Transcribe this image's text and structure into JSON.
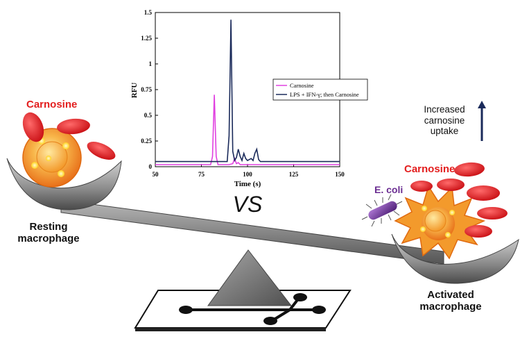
{
  "labels": {
    "left_cargo": "Carnosine",
    "right_cargo": "Carnosine",
    "resting": "Resting\nmacrophage",
    "activated": "Activated\nmacrophage",
    "ecoli": "E. coli",
    "uptake": "Increased\ncarnosine\nuptake",
    "vs": "VS"
  },
  "colors": {
    "carnosine": "#e3161c",
    "series_carnosine": "#e040e0",
    "series_lps": "#1a2a5a",
    "arrow": "#1a2a5a",
    "ecoli": "#6a2c91"
  },
  "icons": [
    "scale-icon",
    "microfluidic-chip-icon",
    "ecoli-icon",
    "up-arrow-icon"
  ],
  "chart_data": {
    "type": "line",
    "xlabel": "Time (s)",
    "ylabel": "RFU",
    "xlim": [
      50,
      150
    ],
    "ylim": [
      0,
      1.5
    ],
    "xticks": [
      50,
      75,
      100,
      125,
      150
    ],
    "yticks": [
      0,
      0.25,
      0.5,
      0.75,
      1,
      1.25,
      1.5
    ],
    "ytick_labels": [
      "0",
      "0.25",
      "0.5",
      "0.75",
      "1",
      "1.25",
      "1.5"
    ],
    "legend_position": "center-right",
    "series": [
      {
        "name": "Carnosine",
        "x": [
          50,
          80,
          81,
          82,
          83,
          84,
          90,
          92,
          93,
          94,
          95,
          96,
          150
        ],
        "y": [
          0.02,
          0.02,
          0.1,
          0.7,
          0.1,
          0.02,
          0.02,
          0.03,
          0.08,
          0.03,
          0.04,
          0.02,
          0.02
        ]
      },
      {
        "name": "LPS + IFN-γ; then Carnosine",
        "x": [
          50,
          89,
          90,
          91,
          92,
          93,
          94,
          95,
          96,
          97,
          98,
          99,
          100,
          101,
          102,
          103,
          104,
          105,
          106,
          107,
          150
        ],
        "y": [
          0.05,
          0.05,
          0.3,
          1.43,
          0.15,
          0.06,
          0.09,
          0.17,
          0.1,
          0.06,
          0.13,
          0.08,
          0.06,
          0.07,
          0.08,
          0.06,
          0.13,
          0.17,
          0.07,
          0.05,
          0.05
        ]
      }
    ]
  }
}
